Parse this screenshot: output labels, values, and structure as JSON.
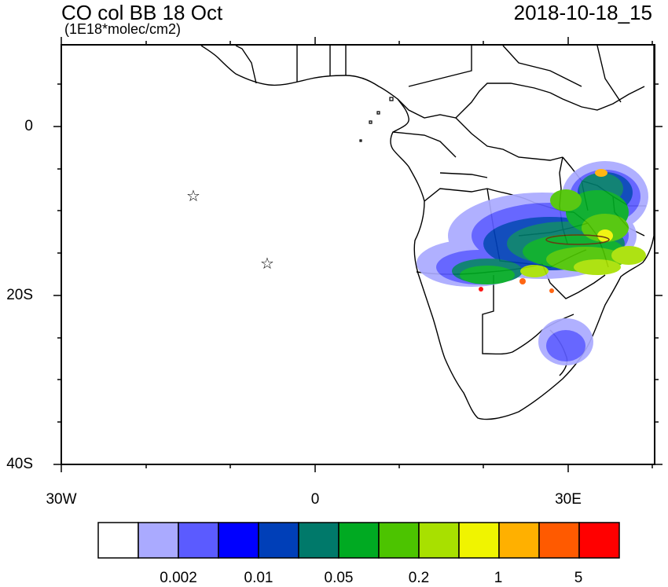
{
  "title": "CO col BB 18 Oct",
  "units": "(1E18*molec/cm2)",
  "datetime": "2018-10-18_15",
  "y_ticks": [
    {
      "label": "0"
    },
    {
      "label": "20S"
    },
    {
      "label": "40S"
    }
  ],
  "x_ticks": [
    {
      "label": "30W"
    },
    {
      "label": "0"
    },
    {
      "label": "30E"
    }
  ],
  "colorbar": {
    "colors": [
      "#ffffff",
      "#aaaaff",
      "#5b5bff",
      "#0000ff",
      "#003fb8",
      "#00796a",
      "#00aa22",
      "#4cc400",
      "#a8e000",
      "#f0f400",
      "#ffb000",
      "#ff5a00",
      "#ff0000"
    ],
    "labels": [
      "0.002",
      "0.01",
      "0.05",
      "0.2",
      "1",
      "5"
    ]
  },
  "markers": [
    {
      "name": "star-marker-1",
      "symbol": "☆"
    },
    {
      "name": "star-marker-2",
      "symbol": "☆"
    }
  ]
}
